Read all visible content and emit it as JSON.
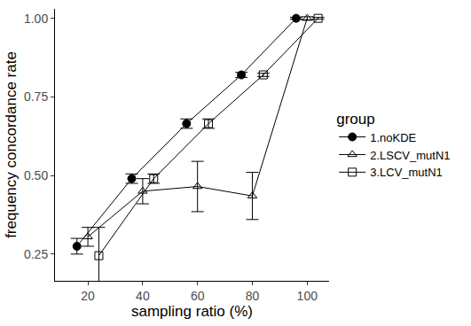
{
  "chart_data": {
    "type": "line",
    "x_label": "sampling ratio (%)",
    "y_label": "frequency concordance rate",
    "legend_title": "group",
    "legend": "right",
    "grid": false,
    "xlim": [
      8,
      108
    ],
    "xticks": [
      20,
      40,
      60,
      80,
      100
    ],
    "ylim": [
      0.165,
      1.03
    ],
    "yticks": [
      0.25,
      {
        "value": 0.5,
        "label": "0.50"
      },
      0.75,
      {
        "value": 1.0,
        "label": "1.00"
      }
    ],
    "series": [
      {
        "name": "1.noKDE",
        "color": "#000000",
        "marker": "circle",
        "x": [
          16,
          36,
          56,
          76,
          96
        ],
        "values": [
          0.275,
          0.49,
          0.665,
          0.82,
          1.0
        ],
        "error": [
          0.025,
          0.015,
          0.015,
          0.008,
          0.003
        ]
      },
      {
        "name": "2.LSCV_mutN1",
        "color": "#000000",
        "marker": "triangle-up-open",
        "x": [
          20,
          40,
          60,
          80,
          100
        ],
        "values": [
          0.305,
          0.45,
          0.465,
          0.435,
          1.0
        ],
        "error": [
          0.03,
          0.04,
          0.08,
          0.075,
          0.005
        ]
      },
      {
        "name": "3.LCV_mutN1",
        "color": "#000000",
        "marker": "square-open",
        "x": [
          24,
          44,
          64,
          84,
          104
        ],
        "values": [
          0.245,
          0.49,
          0.665,
          0.82,
          1.0
        ],
        "error": [
          0.09,
          0.015,
          0.015,
          0.005,
          0.003
        ]
      }
    ]
  }
}
